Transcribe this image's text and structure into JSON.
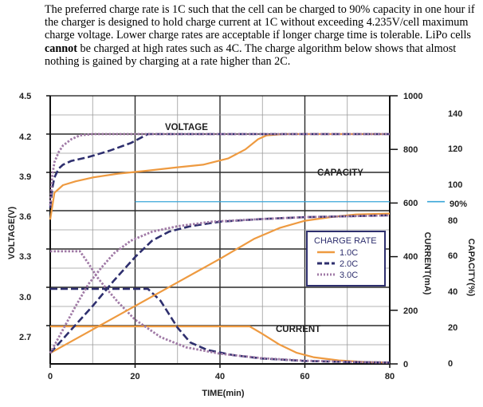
{
  "intro": {
    "part1": "The preferred charge rate is 1C such that the cell can be charged to 90% capacity in one hour if the charger is designed to hold charge current at 1C without exceeding 4.235V/cell maximum charge voltage.  Lower charge rates are acceptable if longer charge time is tolerable.  LiPo cells ",
    "emphasis": "cannot",
    "part2": " be charged at high rates such as 4C.  The charge algorithm below shows that almost nothing is gained by charging at a rate higher than 2C."
  },
  "colors": {
    "voltage_label": "#b3202a",
    "capacity_label": "#2e9fcf",
    "current_label": "#1f8a2a",
    "rate_1c": "#ee9a40",
    "rate_2c": "#2e2f6e",
    "rate_3c": "#a07aa6",
    "grid_major": "#2a2a2a",
    "grid_minor": "#9a9a9a",
    "ninety_line": "#3aa6d8"
  },
  "chart_data": {
    "type": "line",
    "xlabel": "TIME(min)",
    "x_ticks": [
      "0",
      "20",
      "40",
      "60",
      "80"
    ],
    "xlim": [
      0,
      80
    ],
    "axes": {
      "voltage": {
        "label": "VOLTAGE(V)",
        "ylim": [
          2.4,
          4.5
        ],
        "ticks": [
          "2.7",
          "3.0",
          "3.3",
          "3.6",
          "3.9",
          "4.2",
          "4.5"
        ]
      },
      "current": {
        "label": "CURRENT(mA)",
        "ylim": [
          0,
          1000
        ],
        "ticks": [
          "0",
          "200",
          "400",
          "600",
          "800",
          "1000"
        ]
      },
      "capacity": {
        "label": "CAPACITY(%)",
        "ylim": [
          -6,
          142
        ],
        "ticks": [
          "0",
          "20",
          "40",
          "60",
          "80",
          "100",
          "120",
          "140"
        ]
      }
    },
    "annotations": {
      "voltage": "VOLTAGE",
      "capacity": "CAPACITY",
      "current": "CURRENT",
      "ninety": "90%"
    },
    "ninety_percent_current": 605,
    "legend": {
      "title": "CHARGE RATE",
      "entries": [
        "1.0C",
        "2.0C",
        "3.0C"
      ]
    },
    "series": [
      {
        "name": "1.0C",
        "quantity": "voltage",
        "points": [
          [
            0,
            3.53
          ],
          [
            1,
            3.74
          ],
          [
            3,
            3.8
          ],
          [
            6,
            3.83
          ],
          [
            10,
            3.86
          ],
          [
            16,
            3.89
          ],
          [
            22,
            3.91
          ],
          [
            30,
            3.94
          ],
          [
            36,
            3.96
          ],
          [
            42,
            4.01
          ],
          [
            46,
            4.08
          ],
          [
            49,
            4.16
          ],
          [
            51,
            4.19
          ],
          [
            55,
            4.2
          ],
          [
            80,
            4.2
          ]
        ]
      },
      {
        "name": "2.0C",
        "quantity": "voltage",
        "points": [
          [
            0,
            3.62
          ],
          [
            0.5,
            3.78
          ],
          [
            1,
            3.86
          ],
          [
            2,
            3.93
          ],
          [
            3,
            3.96
          ],
          [
            5,
            3.99
          ],
          [
            9,
            4.02
          ],
          [
            14,
            4.07
          ],
          [
            19,
            4.13
          ],
          [
            23,
            4.2
          ],
          [
            80,
            4.2
          ]
        ]
      },
      {
        "name": "3.0C",
        "quantity": "voltage",
        "points": [
          [
            0,
            3.64
          ],
          [
            0.5,
            3.88
          ],
          [
            1,
            3.98
          ],
          [
            2,
            4.06
          ],
          [
            3,
            4.11
          ],
          [
            5,
            4.16
          ],
          [
            7,
            4.19
          ],
          [
            10,
            4.2
          ],
          [
            80,
            4.2
          ]
        ]
      },
      {
        "name": "1.0C",
        "quantity": "current",
        "points": [
          [
            0,
            140
          ],
          [
            47,
            140
          ],
          [
            50,
            112
          ],
          [
            54,
            72
          ],
          [
            58,
            42
          ],
          [
            62,
            25
          ],
          [
            68,
            13
          ],
          [
            74,
            7
          ],
          [
            80,
            5
          ]
        ]
      },
      {
        "name": "2.0C",
        "quantity": "current",
        "points": [
          [
            0,
            280
          ],
          [
            23,
            280
          ],
          [
            26,
            235
          ],
          [
            30,
            135
          ],
          [
            33,
            80
          ],
          [
            37,
            52
          ],
          [
            43,
            33
          ],
          [
            50,
            20
          ],
          [
            60,
            11
          ],
          [
            70,
            7
          ],
          [
            80,
            5
          ]
        ]
      },
      {
        "name": "3.0C",
        "quantity": "current",
        "points": [
          [
            0,
            420
          ],
          [
            7,
            420
          ],
          [
            9,
            375
          ],
          [
            11,
            325
          ],
          [
            13,
            285
          ],
          [
            16,
            230
          ],
          [
            20,
            165
          ],
          [
            26,
            100
          ],
          [
            32,
            62
          ],
          [
            40,
            38
          ],
          [
            50,
            21
          ],
          [
            60,
            12
          ],
          [
            70,
            8
          ],
          [
            80,
            5
          ]
        ]
      },
      {
        "name": "1.0C",
        "quantity": "capacity",
        "points": [
          [
            0,
            0
          ],
          [
            10,
            13
          ],
          [
            20,
            26
          ],
          [
            30,
            39
          ],
          [
            40,
            52
          ],
          [
            48,
            63
          ],
          [
            54,
            69
          ],
          [
            60,
            73
          ],
          [
            66,
            75
          ],
          [
            72,
            76.5
          ],
          [
            80,
            77
          ]
        ]
      },
      {
        "name": "2.0C",
        "quantity": "capacity",
        "points": [
          [
            0,
            0
          ],
          [
            5,
            13
          ],
          [
            10,
            26
          ],
          [
            15,
            40
          ],
          [
            20,
            53
          ],
          [
            24,
            62
          ],
          [
            28,
            67
          ],
          [
            33,
            70
          ],
          [
            40,
            72.5
          ],
          [
            50,
            74
          ],
          [
            60,
            75
          ],
          [
            70,
            75.5
          ],
          [
            80,
            76
          ]
        ]
      },
      {
        "name": "3.0C",
        "quantity": "capacity",
        "points": [
          [
            0,
            0
          ],
          [
            3,
            13
          ],
          [
            6,
            26
          ],
          [
            9,
            38
          ],
          [
            12,
            47
          ],
          [
            15,
            55
          ],
          [
            19,
            62
          ],
          [
            24,
            67
          ],
          [
            30,
            70
          ],
          [
            38,
            72.5
          ],
          [
            50,
            74
          ],
          [
            60,
            75
          ],
          [
            70,
            75.5
          ],
          [
            80,
            76
          ]
        ]
      }
    ]
  }
}
